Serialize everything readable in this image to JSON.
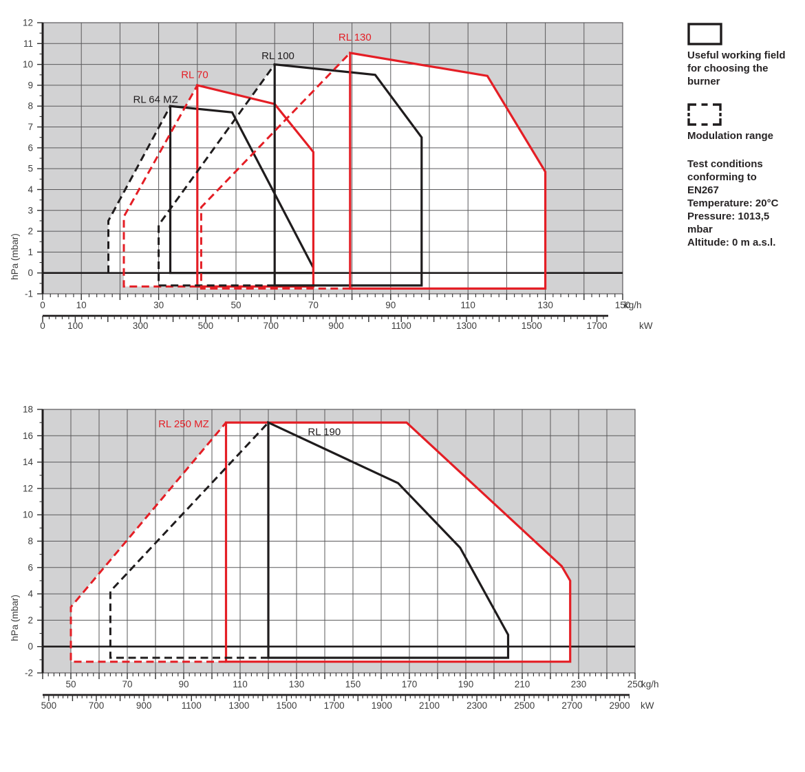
{
  "colors": {
    "red": "#e41e25",
    "black": "#1f1c1d",
    "plot_bg": "#d2d2d3",
    "grid": "#59585a",
    "tick_text": "#3c3c3c"
  },
  "legend": {
    "useful_field_lines": [
      "Useful working field",
      "for choosing the",
      "burner"
    ],
    "modulation_label": "Modulation range",
    "test_conditions_lines": [
      "Test conditions",
      "conforming to",
      "EN267",
      "Temperature: 20°C",
      "Pressure: 1013,5",
      "mbar",
      "Altitude: 0 m a.s.l."
    ]
  },
  "chart_data": [
    {
      "type": "area",
      "name": "working-field-chart-small-burners",
      "y_axis": {
        "label": "hPa (mbar)",
        "min": -1,
        "max": 12,
        "label_step": 1,
        "minor_step": 0.5
      },
      "x_axis_kgh": {
        "unit": "kg/h",
        "min": 0,
        "max": 150,
        "labels": [
          0,
          10,
          30,
          50,
          70,
          90,
          110,
          130,
          150
        ],
        "minor_step": 2,
        "grid_step": 10,
        "major_tick_step": 10
      },
      "x_axis_kw": {
        "unit": "kW",
        "labels": [
          0,
          100,
          300,
          500,
          700,
          900,
          1100,
          1300,
          1500,
          1700
        ],
        "minor_step": 20,
        "major_tick_step": 100,
        "kw_per_kgh": 11.86
      },
      "series": [
        {
          "name": "RL 64 MZ modulation",
          "color": "black",
          "style": "dashed",
          "closed": false,
          "points": [
            [
              17,
              0
            ],
            [
              17,
              2.5
            ],
            [
              33,
              8
            ]
          ],
          "region": [
            [
              17,
              0
            ],
            [
              17,
              2.5
            ],
            [
              33,
              8
            ],
            [
              33,
              0
            ]
          ]
        },
        {
          "name": "RL 70 modulation",
          "color": "red",
          "style": "dashed",
          "closed": false,
          "points": [
            [
              40,
              -0.65
            ],
            [
              21,
              -0.65
            ],
            [
              21,
              2.7
            ],
            [
              40,
              9
            ]
          ],
          "region": [
            [
              21,
              -0.65
            ],
            [
              21,
              2.7
            ],
            [
              40,
              9
            ],
            [
              40,
              -0.65
            ]
          ]
        },
        {
          "name": "RL 100 modulation",
          "color": "black",
          "style": "dashed",
          "closed": false,
          "points": [
            [
              60,
              -0.6
            ],
            [
              30,
              -0.6
            ],
            [
              30,
              2.3
            ],
            [
              60,
              10
            ]
          ],
          "region": [
            [
              30,
              -0.6
            ],
            [
              30,
              2.3
            ],
            [
              60,
              10
            ],
            [
              60,
              -0.6
            ]
          ]
        },
        {
          "name": "RL 130 modulation",
          "color": "red",
          "style": "dashed",
          "closed": false,
          "points": [
            [
              79.5,
              -0.75
            ],
            [
              41,
              -0.75
            ],
            [
              41,
              3.15
            ],
            [
              79.5,
              10.55
            ]
          ],
          "region": [
            [
              41,
              -0.75
            ],
            [
              41,
              3.15
            ],
            [
              79.5,
              10.55
            ],
            [
              79.5,
              -0.75
            ]
          ]
        },
        {
          "name": "RL 64 MZ",
          "color": "black",
          "style": "solid",
          "closed": true,
          "points": [
            [
              33,
              0
            ],
            [
              33,
              8
            ],
            [
              49,
              7.7
            ],
            [
              70,
              0.25
            ],
            [
              70,
              0
            ]
          ]
        },
        {
          "name": "RL 70",
          "color": "red",
          "style": "solid",
          "closed": true,
          "points": [
            [
              40,
              -0.65
            ],
            [
              40,
              9
            ],
            [
              60,
              8.1
            ],
            [
              70,
              5.8
            ],
            [
              70,
              -0.65
            ]
          ]
        },
        {
          "name": "RL 100",
          "color": "black",
          "style": "solid",
          "closed": true,
          "points": [
            [
              60,
              -0.6
            ],
            [
              60,
              10
            ],
            [
              86,
              9.5
            ],
            [
              98,
              6.5
            ],
            [
              98,
              -0.6
            ]
          ]
        },
        {
          "name": "RL 130",
          "color": "red",
          "style": "solid",
          "closed": true,
          "points": [
            [
              79.5,
              -0.75
            ],
            [
              79.5,
              10.55
            ],
            [
              115,
              9.45
            ],
            [
              130,
              4.85
            ],
            [
              130,
              -0.75
            ]
          ]
        }
      ],
      "annotations": [
        {
          "text": "RL 64 MZ",
          "color": "black",
          "x": 23.4,
          "y": 8.15
        },
        {
          "text": "RL 70",
          "color": "red",
          "x": 35.8,
          "y": 9.35
        },
        {
          "text": "RL 100",
          "color": "black",
          "x": 56.6,
          "y": 10.25
        },
        {
          "text": "RL 130",
          "color": "red",
          "x": 76.5,
          "y": 11.15
        }
      ]
    },
    {
      "type": "area",
      "name": "working-field-chart-large-burners",
      "y_axis": {
        "label": "hPa (mbar)",
        "min": -2,
        "max": 18,
        "label_step": 2,
        "minor_step": 1
      },
      "x_axis_kgh": {
        "unit": "kg/h",
        "min": 40,
        "max": 250,
        "labels": [
          50,
          70,
          90,
          110,
          130,
          150,
          170,
          190,
          210,
          230,
          250
        ],
        "minor_step": 2,
        "grid_step": 10,
        "major_tick_step": 10
      },
      "x_axis_kw": {
        "unit": "kW",
        "labels": [
          500,
          700,
          900,
          1100,
          1300,
          1500,
          1700,
          1900,
          2100,
          2300,
          2500,
          2700,
          2900
        ],
        "minor_step": 20,
        "major_tick_step": 100,
        "kw_per_kgh": 11.86
      },
      "series": [
        {
          "name": "RL 250 MZ modulation",
          "color": "red",
          "style": "dashed",
          "closed": false,
          "points": [
            [
              105,
              -1.15
            ],
            [
              50,
              -1.15
            ],
            [
              50,
              3
            ],
            [
              105,
              17
            ]
          ],
          "region": [
            [
              50,
              -1.15
            ],
            [
              50,
              3
            ],
            [
              105,
              17
            ],
            [
              105,
              -1.15
            ]
          ]
        },
        {
          "name": "RL 190 modulation",
          "color": "black",
          "style": "dashed",
          "closed": false,
          "points": [
            [
              120,
              -0.85
            ],
            [
              64,
              -0.85
            ],
            [
              64,
              4.2
            ],
            [
              120,
              17
            ]
          ],
          "region": [
            [
              64,
              -0.85
            ],
            [
              64,
              4.2
            ],
            [
              120,
              17
            ],
            [
              120,
              -0.85
            ]
          ]
        },
        {
          "name": "RL 250 MZ",
          "color": "red",
          "style": "solid",
          "closed": true,
          "points": [
            [
              105,
              -1.15
            ],
            [
              105,
              17
            ],
            [
              169,
              17
            ],
            [
              224,
              6.1
            ],
            [
              227,
              5
            ],
            [
              227,
              -1.15
            ]
          ]
        },
        {
          "name": "RL 190",
          "color": "black",
          "style": "solid",
          "closed": true,
          "points": [
            [
              120,
              -0.85
            ],
            [
              120,
              17
            ],
            [
              166,
              12.4
            ],
            [
              188,
              7.5
            ],
            [
              205,
              0.9
            ],
            [
              205,
              -0.85
            ]
          ]
        }
      ],
      "annotations": [
        {
          "text": "RL 250 MZ",
          "color": "red",
          "x": 81,
          "y": 16.65
        },
        {
          "text": "RL 190",
          "color": "black",
          "x": 134,
          "y": 16.05
        }
      ]
    }
  ]
}
